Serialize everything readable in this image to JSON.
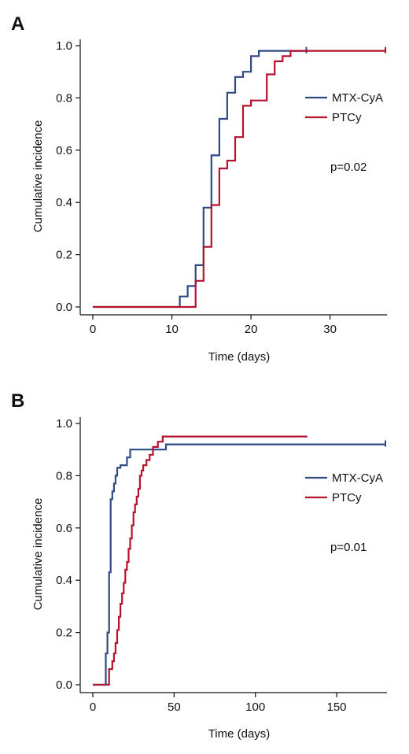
{
  "colors": {
    "mtx_cya": "#2e4a86",
    "ptcy": "#b5122e"
  },
  "chart_data": [
    {
      "panel": "A",
      "type": "line",
      "step": "post",
      "xlabel": "Time (days)",
      "ylabel": "Cumulative incidence",
      "xlim": [
        -1,
        37
      ],
      "ylim": [
        -0.03,
        1.0
      ],
      "xticks": [
        0,
        10,
        20,
        30
      ],
      "yticks": [
        "0.0",
        "0.2",
        "0.4",
        "0.6",
        "0.8",
        "1.0"
      ],
      "annotation": "p=0.02",
      "legend": "right",
      "series": [
        {
          "name": "MTX-CyA",
          "color": "#2e4a86",
          "x": [
            0,
            11,
            12,
            13,
            14,
            15,
            16,
            17,
            18,
            19,
            20,
            21,
            27
          ],
          "y": [
            0,
            0.04,
            0.08,
            0.16,
            0.38,
            0.58,
            0.72,
            0.82,
            0.88,
            0.9,
            0.96,
            0.98,
            0.98
          ],
          "censor_x": [
            27
          ],
          "censor_y": [
            0.98
          ]
        },
        {
          "name": "PTCy",
          "color": "#b5122e",
          "x": [
            0,
            13,
            14,
            15,
            16,
            17,
            18,
            19,
            20,
            22,
            23,
            24,
            25,
            37
          ],
          "y": [
            0,
            0.1,
            0.23,
            0.39,
            0.53,
            0.56,
            0.65,
            0.77,
            0.79,
            0.89,
            0.94,
            0.96,
            0.98,
            0.98
          ],
          "censor_x": [
            37
          ],
          "censor_y": [
            0.98
          ]
        }
      ]
    },
    {
      "panel": "B",
      "type": "line",
      "step": "post",
      "xlabel": "Time (days)",
      "ylabel": "Cumulative incidence",
      "xlim": [
        -7,
        180
      ],
      "ylim": [
        -0.03,
        1.0
      ],
      "xticks": [
        0,
        50,
        100,
        150
      ],
      "yticks": [
        "0.0",
        "0.2",
        "0.4",
        "0.6",
        "0.8",
        "1.0"
      ],
      "annotation": "p=0.01",
      "legend": "right",
      "series": [
        {
          "name": "MTX-CyA",
          "color": "#2e4a86",
          "x": [
            0,
            8,
            9,
            10,
            11,
            12,
            13,
            14,
            15,
            17,
            21,
            23,
            25,
            30,
            45,
            180
          ],
          "y": [
            0,
            0.12,
            0.2,
            0.43,
            0.71,
            0.74,
            0.77,
            0.8,
            0.83,
            0.84,
            0.87,
            0.9,
            0.9,
            0.9,
            0.92,
            0.92
          ],
          "censor_x": [
            180
          ],
          "censor_y": [
            0.92
          ]
        },
        {
          "name": "PTCy",
          "color": "#b5122e",
          "x": [
            0,
            10,
            12,
            13,
            14,
            15,
            16,
            17,
            18,
            19,
            20,
            21,
            22,
            23,
            24,
            25,
            26,
            27,
            28,
            29,
            30,
            31,
            33,
            35,
            37,
            40,
            43,
            132
          ],
          "y": [
            0,
            0.06,
            0.09,
            0.12,
            0.16,
            0.21,
            0.26,
            0.31,
            0.35,
            0.39,
            0.44,
            0.47,
            0.52,
            0.56,
            0.61,
            0.66,
            0.69,
            0.72,
            0.75,
            0.8,
            0.82,
            0.84,
            0.86,
            0.88,
            0.91,
            0.93,
            0.95,
            0.95
          ],
          "censor_x": [],
          "censor_y": []
        }
      ]
    }
  ]
}
